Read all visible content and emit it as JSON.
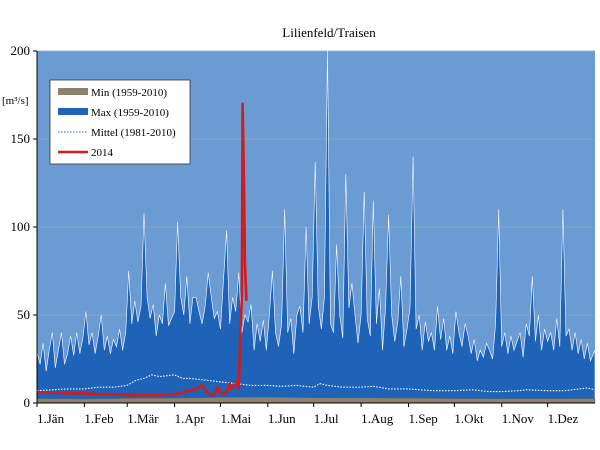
{
  "chart_data": {
    "type": "area",
    "title": "Lilienfeld/Traisen",
    "unit_label": "[m³/s]",
    "xlabel": "",
    "ylabel": "",
    "x_domain": [
      0,
      365
    ],
    "ylim": [
      0,
      200
    ],
    "y_ticks": [
      0,
      50,
      100,
      150,
      200
    ],
    "x_ticks": [
      {
        "day": 0,
        "label": "1.Jän"
      },
      {
        "day": 31,
        "label": "1.Feb"
      },
      {
        "day": 59,
        "label": "1.Mär"
      },
      {
        "day": 90,
        "label": "1.Apr"
      },
      {
        "day": 120,
        "label": "1.Mai"
      },
      {
        "day": 151,
        "label": "1.Jun"
      },
      {
        "day": 181,
        "label": "1.Jul"
      },
      {
        "day": 212,
        "label": "1.Aug"
      },
      {
        "day": 243,
        "label": "1.Sep"
      },
      {
        "day": 273,
        "label": "1.Okt"
      },
      {
        "day": 304,
        "label": "1.Nov"
      },
      {
        "day": 334,
        "label": "1.Dez"
      }
    ],
    "grid": true,
    "legend_position": "top-left",
    "colors": {
      "background": "#6a9bd3",
      "max_fill": "#1e63b8",
      "min_fill": "#8c8270",
      "mittel": "#2a62b0",
      "year_2014": "#d51a1a",
      "grid": "#8fa8c8"
    },
    "series": [
      {
        "name": "Min (1959-2010)",
        "kind": "area",
        "points": [
          [
            0,
            2.5
          ],
          [
            31,
            2.3
          ],
          [
            59,
            2.6
          ],
          [
            90,
            2.8
          ],
          [
            110,
            3
          ],
          [
            120,
            3.2
          ],
          [
            151,
            3.3
          ],
          [
            181,
            3
          ],
          [
            212,
            2.9
          ],
          [
            243,
            2.7
          ],
          [
            273,
            2.5
          ],
          [
            304,
            2.4
          ],
          [
            334,
            2.4
          ],
          [
            365,
            2.5
          ]
        ]
      },
      {
        "name": "Max (1959-2010)",
        "kind": "area",
        "points": [
          [
            0,
            29
          ],
          [
            2,
            22
          ],
          [
            4,
            34
          ],
          [
            6,
            18
          ],
          [
            8,
            30
          ],
          [
            10,
            40
          ],
          [
            12,
            20
          ],
          [
            14,
            30
          ],
          [
            16,
            40
          ],
          [
            18,
            22
          ],
          [
            20,
            28
          ],
          [
            22,
            38
          ],
          [
            24,
            27
          ],
          [
            26,
            40
          ],
          [
            28,
            28
          ],
          [
            30,
            37
          ],
          [
            32,
            52
          ],
          [
            34,
            33
          ],
          [
            36,
            40
          ],
          [
            38,
            28
          ],
          [
            40,
            38
          ],
          [
            42,
            50
          ],
          [
            44,
            30
          ],
          [
            46,
            38
          ],
          [
            48,
            28
          ],
          [
            50,
            36
          ],
          [
            52,
            32
          ],
          [
            54,
            42
          ],
          [
            56,
            30
          ],
          [
            58,
            40
          ],
          [
            60,
            75
          ],
          [
            62,
            45
          ],
          [
            64,
            58
          ],
          [
            66,
            46
          ],
          [
            68,
            55
          ],
          [
            70,
            108
          ],
          [
            72,
            60
          ],
          [
            74,
            48
          ],
          [
            76,
            56
          ],
          [
            78,
            38
          ],
          [
            80,
            50
          ],
          [
            82,
            45
          ],
          [
            84,
            68
          ],
          [
            86,
            44
          ],
          [
            88,
            48
          ],
          [
            90,
            52
          ],
          [
            92,
            103
          ],
          [
            94,
            60
          ],
          [
            96,
            50
          ],
          [
            98,
            72
          ],
          [
            100,
            45
          ],
          [
            102,
            60
          ],
          [
            104,
            60
          ],
          [
            106,
            52
          ],
          [
            108,
            45
          ],
          [
            110,
            55
          ],
          [
            112,
            74
          ],
          [
            114,
            60
          ],
          [
            116,
            48
          ],
          [
            118,
            52
          ],
          [
            120,
            42
          ],
          [
            122,
            70
          ],
          [
            124,
            98
          ],
          [
            126,
            45
          ],
          [
            128,
            60
          ],
          [
            130,
            52
          ],
          [
            132,
            74
          ],
          [
            134,
            40
          ],
          [
            136,
            50
          ],
          [
            138,
            46
          ],
          [
            140,
            56
          ],
          [
            142,
            30
          ],
          [
            144,
            45
          ],
          [
            146,
            35
          ],
          [
            148,
            47
          ],
          [
            150,
            30
          ],
          [
            152,
            50
          ],
          [
            154,
            75
          ],
          [
            156,
            40
          ],
          [
            158,
            32
          ],
          [
            160,
            45
          ],
          [
            162,
            110
          ],
          [
            164,
            40
          ],
          [
            166,
            48
          ],
          [
            168,
            28
          ],
          [
            170,
            50
          ],
          [
            172,
            55
          ],
          [
            174,
            40
          ],
          [
            176,
            100
          ],
          [
            178,
            45
          ],
          [
            180,
            60
          ],
          [
            182,
            137
          ],
          [
            184,
            55
          ],
          [
            186,
            42
          ],
          [
            188,
            60
          ],
          [
            190,
            200
          ],
          [
            192,
            45
          ],
          [
            194,
            40
          ],
          [
            196,
            90
          ],
          [
            198,
            50
          ],
          [
            200,
            37
          ],
          [
            202,
            130
          ],
          [
            204,
            54
          ],
          [
            206,
            68
          ],
          [
            208,
            50
          ],
          [
            210,
            34
          ],
          [
            212,
            50
          ],
          [
            214,
            120
          ],
          [
            216,
            48
          ],
          [
            218,
            38
          ],
          [
            220,
            115
          ],
          [
            222,
            45
          ],
          [
            224,
            65
          ],
          [
            226,
            30
          ],
          [
            228,
            55
          ],
          [
            230,
            107
          ],
          [
            232,
            50
          ],
          [
            234,
            35
          ],
          [
            236,
            46
          ],
          [
            238,
            72
          ],
          [
            240,
            32
          ],
          [
            242,
            42
          ],
          [
            244,
            54
          ],
          [
            246,
            140
          ],
          [
            248,
            42
          ],
          [
            250,
            50
          ],
          [
            252,
            30
          ],
          [
            254,
            46
          ],
          [
            256,
            35
          ],
          [
            258,
            40
          ],
          [
            260,
            30
          ],
          [
            262,
            55
          ],
          [
            264,
            36
          ],
          [
            266,
            48
          ],
          [
            268,
            30
          ],
          [
            270,
            38
          ],
          [
            272,
            28
          ],
          [
            274,
            52
          ],
          [
            276,
            40
          ],
          [
            278,
            32
          ],
          [
            280,
            45
          ],
          [
            282,
            38
          ],
          [
            284,
            28
          ],
          [
            286,
            36
          ],
          [
            288,
            24
          ],
          [
            290,
            30
          ],
          [
            292,
            26
          ],
          [
            294,
            34
          ],
          [
            296,
            30
          ],
          [
            298,
            25
          ],
          [
            300,
            45
          ],
          [
            302,
            110
          ],
          [
            304,
            32
          ],
          [
            306,
            40
          ],
          [
            308,
            28
          ],
          [
            310,
            38
          ],
          [
            312,
            30
          ],
          [
            314,
            35
          ],
          [
            316,
            40
          ],
          [
            318,
            26
          ],
          [
            320,
            45
          ],
          [
            322,
            38
          ],
          [
            324,
            72
          ],
          [
            326,
            35
          ],
          [
            328,
            50
          ],
          [
            330,
            30
          ],
          [
            332,
            42
          ],
          [
            334,
            35
          ],
          [
            336,
            40
          ],
          [
            338,
            30
          ],
          [
            340,
            48
          ],
          [
            342,
            32
          ],
          [
            344,
            110
          ],
          [
            346,
            38
          ],
          [
            348,
            42
          ],
          [
            350,
            30
          ],
          [
            352,
            40
          ],
          [
            354,
            28
          ],
          [
            356,
            36
          ],
          [
            358,
            25
          ],
          [
            360,
            34
          ],
          [
            362,
            24
          ],
          [
            365,
            30
          ]
        ]
      },
      {
        "name": "Mittel (1981-2010)",
        "kind": "dotted-line",
        "points": [
          [
            0,
            7
          ],
          [
            10,
            7.5
          ],
          [
            20,
            8
          ],
          [
            31,
            8
          ],
          [
            40,
            9
          ],
          [
            50,
            9
          ],
          [
            59,
            10
          ],
          [
            65,
            13
          ],
          [
            70,
            14
          ],
          [
            75,
            16
          ],
          [
            80,
            15
          ],
          [
            90,
            16
          ],
          [
            95,
            14
          ],
          [
            100,
            14
          ],
          [
            110,
            13
          ],
          [
            120,
            12
          ],
          [
            130,
            11
          ],
          [
            140,
            10
          ],
          [
            151,
            10
          ],
          [
            160,
            9.5
          ],
          [
            170,
            10
          ],
          [
            181,
            9
          ],
          [
            185,
            11
          ],
          [
            190,
            10
          ],
          [
            200,
            9
          ],
          [
            212,
            9
          ],
          [
            220,
            9.5
          ],
          [
            230,
            8
          ],
          [
            243,
            8
          ],
          [
            250,
            7.5
          ],
          [
            260,
            7
          ],
          [
            273,
            7
          ],
          [
            285,
            7.5
          ],
          [
            295,
            6.5
          ],
          [
            304,
            6.5
          ],
          [
            315,
            7
          ],
          [
            320,
            7.5
          ],
          [
            334,
            7
          ],
          [
            345,
            7
          ],
          [
            355,
            8
          ],
          [
            360,
            8.5
          ],
          [
            365,
            7.5
          ]
        ]
      },
      {
        "name": "2014",
        "kind": "line",
        "points": [
          [
            0,
            6
          ],
          [
            10,
            6
          ],
          [
            20,
            5.5
          ],
          [
            31,
            5.5
          ],
          [
            40,
            5
          ],
          [
            50,
            5
          ],
          [
            59,
            4.5
          ],
          [
            70,
            4.5
          ],
          [
            80,
            4.5
          ],
          [
            90,
            5
          ],
          [
            95,
            6
          ],
          [
            100,
            7
          ],
          [
            104,
            8
          ],
          [
            108,
            10
          ],
          [
            110,
            7
          ],
          [
            113,
            5
          ],
          [
            116,
            4.5
          ],
          [
            118,
            9
          ],
          [
            120,
            6
          ],
          [
            121,
            5
          ],
          [
            124,
            6
          ],
          [
            126,
            11
          ],
          [
            127,
            8
          ],
          [
            129,
            9
          ],
          [
            131,
            13
          ],
          [
            132,
            8
          ],
          [
            133,
            40
          ],
          [
            134,
            60
          ],
          [
            134.5,
            170
          ],
          [
            135.5,
            120
          ],
          [
            136,
            80
          ],
          [
            137,
            58
          ]
        ]
      }
    ]
  }
}
